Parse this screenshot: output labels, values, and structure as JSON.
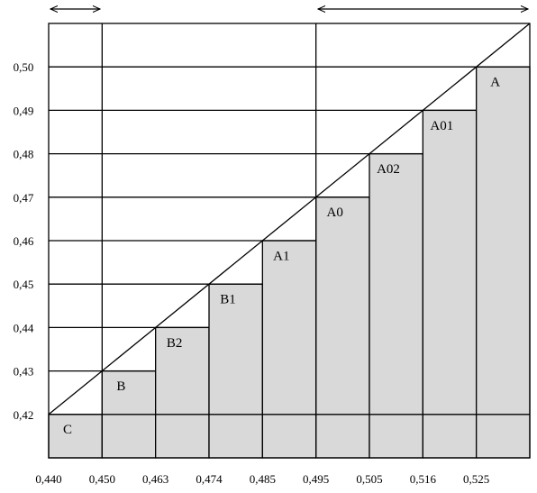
{
  "chart_data": {
    "type": "step-bar",
    "categories": [
      "C",
      "B",
      "B2",
      "B1",
      "A1",
      "A0",
      "A02",
      "A01",
      "A"
    ],
    "values": [
      0.42,
      0.43,
      0.44,
      0.45,
      0.46,
      0.47,
      0.48,
      0.49,
      0.5
    ],
    "color": "#d9d9d9",
    "x_tick_labels": [
      "0,440",
      "0,450",
      "0,463",
      "0,474",
      "0,485",
      "0,495",
      "0,505",
      "0,516",
      "0,525",
      null
    ],
    "ylim": [
      0.41,
      0.51
    ],
    "yticks": [
      {
        "value": 0.42,
        "label": "0,42"
      },
      {
        "value": 0.43,
        "label": "0,43"
      },
      {
        "value": 0.44,
        "label": "0,44"
      },
      {
        "value": 0.45,
        "label": "0,45"
      },
      {
        "value": 0.46,
        "label": "0,46"
      },
      {
        "value": 0.47,
        "label": "0,47"
      },
      {
        "value": 0.48,
        "label": "0,48"
      },
      {
        "value": 0.49,
        "label": "0,49"
      },
      {
        "value": 0.5,
        "label": "0,50"
      }
    ]
  }
}
